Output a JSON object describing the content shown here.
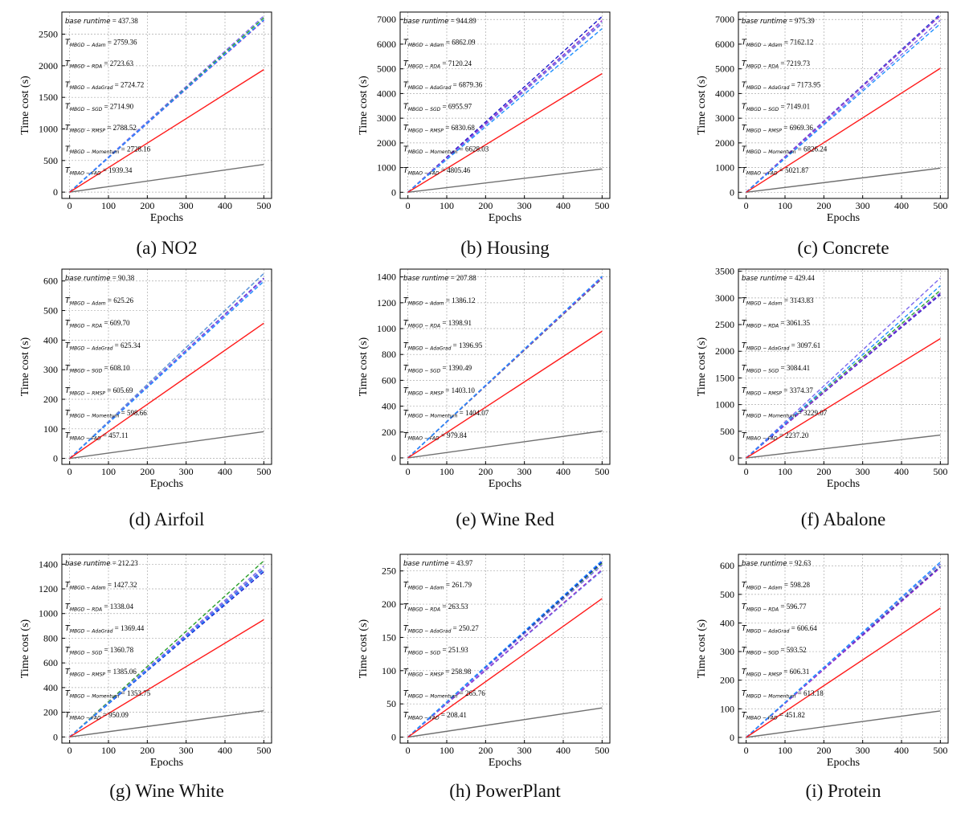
{
  "chart_data": [
    {
      "type": "line",
      "caption": "(a) NO2",
      "xlabel": "Epochs",
      "ylabel": "Time cost (s)",
      "xlim": [
        0,
        500
      ],
      "xticks": [
        0,
        100,
        200,
        300,
        400,
        500
      ],
      "ylim": [
        -100,
        2850
      ],
      "yticks": [
        0,
        500,
        1000,
        1500,
        2000,
        2500
      ],
      "grid": true,
      "base_runtime": 437.38,
      "series": [
        {
          "name": "MBGD-Adam",
          "value": 2759.36
        },
        {
          "name": "MBGD-RDA",
          "value": 2723.63
        },
        {
          "name": "MBGD-AdaGrad",
          "value": 2724.72
        },
        {
          "name": "MBGD-SGD",
          "value": 2714.9
        },
        {
          "name": "MBGD-RMSP",
          "value": 2788.52
        },
        {
          "name": "MBGD-Momentum",
          "value": 2728.16
        },
        {
          "name": "MBAO-FAD",
          "value": 1939.34
        }
      ]
    },
    {
      "type": "line",
      "caption": "(b) Housing",
      "xlabel": "Epochs",
      "ylabel": "Time cost (s)",
      "xlim": [
        0,
        500
      ],
      "xticks": [
        0,
        100,
        200,
        300,
        400,
        500
      ],
      "ylim": [
        -250,
        7300
      ],
      "yticks": [
        0,
        1000,
        2000,
        3000,
        4000,
        5000,
        6000,
        7000
      ],
      "grid": true,
      "base_runtime": 944.89,
      "series": [
        {
          "name": "MBGD-Adam",
          "value": 6862.09
        },
        {
          "name": "MBGD-RDA",
          "value": 7120.24
        },
        {
          "name": "MBGD-AdaGrad",
          "value": 6879.36
        },
        {
          "name": "MBGD-SGD",
          "value": 6955.97
        },
        {
          "name": "MBGD-RMSP",
          "value": 6830.68
        },
        {
          "name": "MBGD-Momentum",
          "value": 6628.03
        },
        {
          "name": "MBAO-FAD",
          "value": 4805.46
        }
      ]
    },
    {
      "type": "line",
      "caption": "(c) Concrete",
      "xlabel": "Epochs",
      "ylabel": "Time cost (s)",
      "xlim": [
        0,
        500
      ],
      "xticks": [
        0,
        100,
        200,
        300,
        400,
        500
      ],
      "ylim": [
        -250,
        7300
      ],
      "yticks": [
        0,
        1000,
        2000,
        3000,
        4000,
        5000,
        6000,
        7000
      ],
      "grid": true,
      "base_runtime": 975.39,
      "series": [
        {
          "name": "MBGD-Adam",
          "value": 7162.12
        },
        {
          "name": "MBGD-RDA",
          "value": 7219.73
        },
        {
          "name": "MBGD-AdaGrad",
          "value": 7173.95
        },
        {
          "name": "MBGD-SGD",
          "value": 7149.01
        },
        {
          "name": "MBGD-RMSP",
          "value": 6969.36
        },
        {
          "name": "MBGD-Momentum",
          "value": 6826.24
        },
        {
          "name": "MBAO-FAD",
          "value": 5021.87
        }
      ]
    },
    {
      "type": "line",
      "caption": "(d) Airfoil",
      "xlabel": "Epochs",
      "ylabel": "Time cost (s)",
      "xlim": [
        0,
        500
      ],
      "xticks": [
        0,
        100,
        200,
        300,
        400,
        500
      ],
      "ylim": [
        -20,
        640
      ],
      "yticks": [
        0,
        100,
        200,
        300,
        400,
        500,
        600
      ],
      "grid": true,
      "base_runtime": 90.38,
      "series": [
        {
          "name": "MBGD-Adam",
          "value": 625.26
        },
        {
          "name": "MBGD-RDA",
          "value": 609.7
        },
        {
          "name": "MBGD-AdaGrad",
          "value": 625.34
        },
        {
          "name": "MBGD-SGD",
          "value": 608.1
        },
        {
          "name": "MBGD-RMSP",
          "value": 605.69
        },
        {
          "name": "MBGD-Momentum",
          "value": 598.66
        },
        {
          "name": "MBAO-FAD",
          "value": 457.11
        }
      ]
    },
    {
      "type": "line",
      "caption": "(e) Wine Red",
      "xlabel": "Epochs",
      "ylabel": "Time cost (s)",
      "xlim": [
        0,
        500
      ],
      "xticks": [
        0,
        100,
        200,
        300,
        400,
        500
      ],
      "ylim": [
        -50,
        1460
      ],
      "yticks": [
        0,
        200,
        400,
        600,
        800,
        1000,
        1200,
        1400
      ],
      "grid": true,
      "base_runtime": 207.88,
      "series": [
        {
          "name": "MBGD-Adam",
          "value": 1386.12
        },
        {
          "name": "MBGD-RDA",
          "value": 1398.91
        },
        {
          "name": "MBGD-AdaGrad",
          "value": 1396.95
        },
        {
          "name": "MBGD-SGD",
          "value": 1390.49
        },
        {
          "name": "MBGD-RMSP",
          "value": 1403.1
        },
        {
          "name": "MBGD-Momentum",
          "value": 1404.07
        },
        {
          "name": "MBAO-FAD",
          "value": 979.84
        }
      ]
    },
    {
      "type": "line",
      "caption": "(f) Abalone",
      "xlabel": "Epochs",
      "ylabel": "Time cost (s)",
      "xlim": [
        0,
        500
      ],
      "xticks": [
        0,
        100,
        200,
        300,
        400,
        500
      ],
      "ylim": [
        -120,
        3540
      ],
      "yticks": [
        0,
        500,
        1000,
        1500,
        2000,
        2500,
        3000,
        3500
      ],
      "grid": true,
      "base_runtime": 429.44,
      "series": [
        {
          "name": "MBGD-Adam",
          "value": 3143.83
        },
        {
          "name": "MBGD-RDA",
          "value": 3061.35
        },
        {
          "name": "MBGD-AdaGrad",
          "value": 3097.61
        },
        {
          "name": "MBGD-SGD",
          "value": 3084.41
        },
        {
          "name": "MBGD-RMSP",
          "value": 3374.37
        },
        {
          "name": "MBGD-Momentum",
          "value": 3229.07
        },
        {
          "name": "MBAO-FAD",
          "value": 2237.2
        }
      ]
    },
    {
      "type": "line",
      "caption": "(g) Wine White",
      "xlabel": "Epochs",
      "ylabel": "Time cost (s)",
      "xlim": [
        0,
        500
      ],
      "xticks": [
        0,
        100,
        200,
        300,
        400,
        500
      ],
      "ylim": [
        -50,
        1480
      ],
      "yticks": [
        0,
        200,
        400,
        600,
        800,
        1000,
        1200,
        1400
      ],
      "grid": true,
      "base_runtime": 212.23,
      "series": [
        {
          "name": "MBGD-Adam",
          "value": 1427.32
        },
        {
          "name": "MBGD-RDA",
          "value": 1338.04
        },
        {
          "name": "MBGD-AdaGrad",
          "value": 1369.44
        },
        {
          "name": "MBGD-SGD",
          "value": 1360.78
        },
        {
          "name": "MBGD-RMSP",
          "value": 1385.06
        },
        {
          "name": "MBGD-Momentum",
          "value": 1353.75
        },
        {
          "name": "MBAO-FAD",
          "value": 950.09
        }
      ]
    },
    {
      "type": "line",
      "caption": "(h) PowerPlant",
      "xlabel": "Epochs",
      "ylabel": "Time cost (s)",
      "xlim": [
        0,
        500
      ],
      "xticks": [
        0,
        100,
        200,
        300,
        400,
        500
      ],
      "ylim": [
        -9,
        275
      ],
      "yticks": [
        0,
        50,
        100,
        150,
        200,
        250
      ],
      "grid": true,
      "base_runtime": 43.97,
      "series": [
        {
          "name": "MBGD-Adam",
          "value": 261.79
        },
        {
          "name": "MBGD-RDA",
          "value": 263.53
        },
        {
          "name": "MBGD-AdaGrad",
          "value": 250.27
        },
        {
          "name": "MBGD-SGD",
          "value": 251.93
        },
        {
          "name": "MBGD-RMSP",
          "value": 258.98
        },
        {
          "name": "MBGD-Momentum",
          "value": 265.76
        },
        {
          "name": "MBAO-FAD",
          "value": 208.41
        }
      ]
    },
    {
      "type": "line",
      "caption": "(i) Protein",
      "xlabel": "Epochs",
      "ylabel": "Time cost (s)",
      "xlim": [
        0,
        500
      ],
      "xticks": [
        0,
        100,
        200,
        300,
        400,
        500
      ],
      "ylim": [
        -20,
        640
      ],
      "yticks": [
        0,
        100,
        200,
        300,
        400,
        500,
        600
      ],
      "grid": true,
      "base_runtime": 92.63,
      "series": [
        {
          "name": "MBGD-Adam",
          "value": 598.28
        },
        {
          "name": "MBGD-RDA",
          "value": 596.77
        },
        {
          "name": "MBGD-AdaGrad",
          "value": 606.64
        },
        {
          "name": "MBGD-SGD",
          "value": 593.52
        },
        {
          "name": "MBGD-RMSP",
          "value": 606.31
        },
        {
          "name": "MBGD-Momentum",
          "value": 613.18
        },
        {
          "name": "MBAO-FAD",
          "value": 451.82
        }
      ]
    }
  ],
  "annotation_labels": {
    "base": "base runtime",
    "symbol": "T",
    "subscripts": {
      "MBGD-Adam": "MBGD − Adam",
      "MBGD-RDA": "MBGD − RDA",
      "MBGD-AdaGrad": "MBGD − AdaGrad",
      "MBGD-SGD": "MBGD − SGD",
      "MBGD-RMSP": "MBGD − RMSP",
      "MBGD-Momentum": "MBGD − Momentum",
      "MBAO-FAD": "MBAO − FAD"
    }
  },
  "colors": {
    "base": "#707070",
    "MBAO-FAD": "#ff1a1a",
    "MBGD-Adam": "#2ca02c",
    "MBGD-RDA": "#1a1acc",
    "MBGD-AdaGrad": "#6495ed",
    "MBGD-SGD": "#9932cc",
    "MBGD-RMSP": "#7b68ee",
    "MBGD-Momentum": "#1e90ff"
  }
}
